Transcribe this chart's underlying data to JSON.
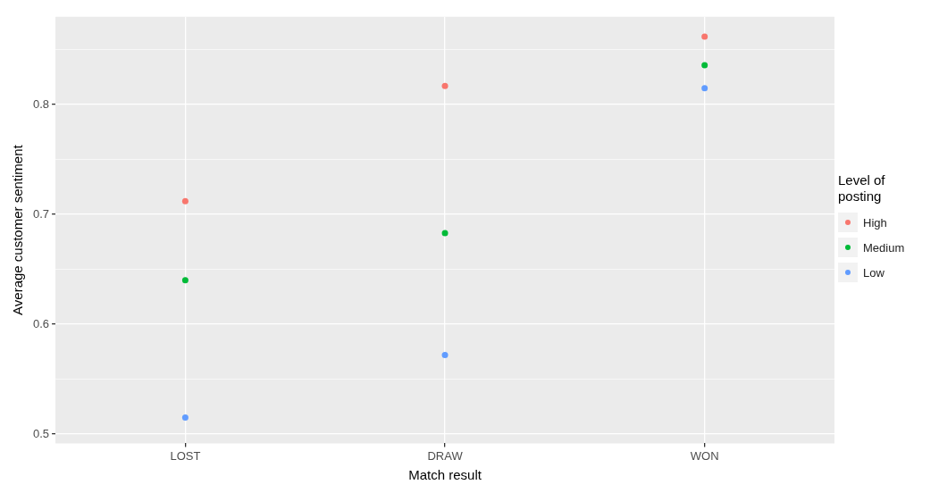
{
  "chart_data": {
    "type": "scatter",
    "xlabel": "Match result",
    "ylabel": "Average customer sentiment",
    "legend_title": "Level of posting",
    "categories": [
      "LOST",
      "DRAW",
      "WON"
    ],
    "series": [
      {
        "name": "High",
        "color": "#f8766d",
        "values": [
          0.712,
          0.817,
          0.862
        ]
      },
      {
        "name": "Medium",
        "color": "#00ba38",
        "values": [
          0.64,
          0.683,
          0.836
        ]
      },
      {
        "name": "Low",
        "color": "#619cff",
        "values": [
          0.515,
          0.572,
          0.815
        ]
      }
    ],
    "ylim": [
      0.4915,
      0.88
    ],
    "yticks": [
      {
        "value": 0.5,
        "label": "0.5"
      },
      {
        "value": 0.55,
        "label": null
      },
      {
        "value": 0.6,
        "label": "0.6"
      },
      {
        "value": 0.65,
        "label": null
      },
      {
        "value": 0.7,
        "label": "0.7"
      },
      {
        "value": 0.75,
        "label": null
      },
      {
        "value": 0.8,
        "label": "0.8"
      },
      {
        "value": 0.85,
        "label": null
      }
    ],
    "grid": true,
    "legend": "right",
    "marker": "circle"
  }
}
